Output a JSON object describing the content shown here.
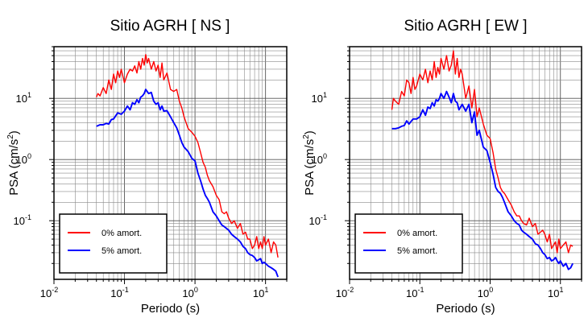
{
  "chart_data": [
    {
      "type": "line",
      "title": "Sitio AGRH [ NS ]",
      "xlabel": "Periodo (s)",
      "ylabel_main": "PSA (cm/s",
      "ylabel_sup": "2",
      "ylabel_end": ")",
      "x_scale": "log",
      "y_scale": "log",
      "xlim": [
        0.01,
        20
      ],
      "ylim": [
        0.011,
        70
      ],
      "x_ticks": [
        {
          "value": 0.01,
          "base": "10",
          "exp": "-2"
        },
        {
          "value": 0.1,
          "base": "10",
          "exp": "-1"
        },
        {
          "value": 1,
          "base": "10",
          "exp": "0"
        },
        {
          "value": 10,
          "base": "10",
          "exp": "1"
        }
      ],
      "y_ticks": [
        {
          "value": 0.1,
          "base": "10",
          "exp": "-1"
        },
        {
          "value": 1,
          "base": "10",
          "exp": "0"
        },
        {
          "value": 10,
          "base": "10",
          "exp": "1"
        }
      ],
      "grid": true,
      "legend_position": "bottom-left",
      "series": [
        {
          "name": "0% amort.",
          "color": "#ff0000",
          "x": [
            0.04,
            0.042,
            0.045,
            0.05,
            0.055,
            0.06,
            0.065,
            0.07,
            0.075,
            0.08,
            0.085,
            0.09,
            0.1,
            0.11,
            0.12,
            0.13,
            0.14,
            0.15,
            0.16,
            0.17,
            0.18,
            0.19,
            0.2,
            0.21,
            0.22,
            0.24,
            0.26,
            0.28,
            0.3,
            0.32,
            0.34,
            0.36,
            0.4,
            0.45,
            0.5,
            0.55,
            0.6,
            0.65,
            0.7,
            0.8,
            0.9,
            1.0,
            1.1,
            1.2,
            1.3,
            1.4,
            1.5,
            1.6,
            1.8,
            2.0,
            2.2,
            2.4,
            2.6,
            2.8,
            3.0,
            3.3,
            3.6,
            4.0,
            4.4,
            4.8,
            5.2,
            5.6,
            6.0,
            6.5,
            7.0,
            7.5,
            8,
            8.5,
            9,
            9.5,
            10,
            11,
            12,
            13,
            14,
            15
          ],
          "y": [
            10.5,
            12,
            11,
            15,
            12,
            20,
            14,
            25,
            18,
            28,
            22,
            30,
            18,
            25,
            30,
            28,
            34,
            26,
            40,
            30,
            45,
            35,
            52,
            38,
            45,
            30,
            40,
            28,
            35,
            22,
            38,
            20,
            26,
            14,
            13,
            14,
            9,
            7,
            5,
            3.2,
            2.8,
            2.4,
            1.9,
            1.3,
            0.9,
            0.75,
            0.55,
            0.45,
            0.36,
            0.26,
            0.22,
            0.14,
            0.13,
            0.14,
            0.11,
            0.09,
            0.1,
            0.075,
            0.09,
            0.06,
            0.065,
            0.05,
            0.05,
            0.035,
            0.04,
            0.055,
            0.035,
            0.045,
            0.035,
            0.055,
            0.04,
            0.05,
            0.03,
            0.045,
            0.04,
            0.025
          ]
        },
        {
          "name": "5% amort.",
          "color": "#0000ff",
          "x": [
            0.04,
            0.045,
            0.05,
            0.055,
            0.06,
            0.065,
            0.07,
            0.08,
            0.09,
            0.1,
            0.11,
            0.12,
            0.13,
            0.14,
            0.15,
            0.16,
            0.17,
            0.18,
            0.19,
            0.2,
            0.22,
            0.24,
            0.26,
            0.28,
            0.3,
            0.32,
            0.34,
            0.36,
            0.4,
            0.45,
            0.5,
            0.55,
            0.6,
            0.65,
            0.7,
            0.8,
            0.9,
            1.0,
            1.1,
            1.2,
            1.3,
            1.4,
            1.5,
            1.6,
            1.8,
            2.0,
            2.2,
            2.4,
            2.6,
            2.8,
            3.0,
            3.3,
            3.6,
            4.0,
            4.4,
            4.8,
            5.2,
            5.6,
            6.0,
            6.5,
            7.0,
            7.5,
            8,
            8.5,
            9,
            9.5,
            10,
            11,
            12,
            13,
            14,
            15
          ],
          "y": [
            3.5,
            3.7,
            3.7,
            3.9,
            3.8,
            4.5,
            4.6,
            5.8,
            5.5,
            6.2,
            7.5,
            6.5,
            8.5,
            8,
            9.5,
            8.5,
            10.5,
            11,
            12,
            14,
            12,
            12.5,
            9,
            8,
            8.5,
            6.5,
            7.5,
            6.2,
            6.3,
            5,
            4,
            3.3,
            2.5,
            1.9,
            1.6,
            1.35,
            1.05,
            0.95,
            0.6,
            0.45,
            0.33,
            0.26,
            0.23,
            0.2,
            0.14,
            0.12,
            0.1,
            0.085,
            0.08,
            0.075,
            0.07,
            0.06,
            0.055,
            0.05,
            0.045,
            0.038,
            0.035,
            0.03,
            0.028,
            0.027,
            0.025,
            0.022,
            0.023,
            0.024,
            0.02,
            0.021,
            0.02,
            0.018,
            0.017,
            0.016,
            0.015,
            0.012
          ]
        }
      ]
    },
    {
      "type": "line",
      "title": "Sitio AGRH [ EW ]",
      "xlabel": "Periodo (s)",
      "ylabel_main": "PSA (cm/s",
      "ylabel_sup": "2",
      "ylabel_end": ")",
      "x_scale": "log",
      "y_scale": "log",
      "xlim": [
        0.01,
        20
      ],
      "ylim": [
        0.011,
        70
      ],
      "x_ticks": [
        {
          "value": 0.01,
          "base": "10",
          "exp": "-2"
        },
        {
          "value": 0.1,
          "base": "10",
          "exp": "-1"
        },
        {
          "value": 1,
          "base": "10",
          "exp": "0"
        },
        {
          "value": 10,
          "base": "10",
          "exp": "1"
        }
      ],
      "y_ticks": [
        {
          "value": 0.1,
          "base": "10",
          "exp": "-1"
        },
        {
          "value": 1,
          "base": "10",
          "exp": "0"
        },
        {
          "value": 10,
          "base": "10",
          "exp": "1"
        }
      ],
      "grid": true,
      "legend_position": "bottom-left",
      "series": [
        {
          "name": "0% amort.",
          "color": "#ff0000",
          "x": [
            0.04,
            0.042,
            0.045,
            0.05,
            0.055,
            0.06,
            0.065,
            0.07,
            0.075,
            0.08,
            0.085,
            0.09,
            0.1,
            0.11,
            0.12,
            0.13,
            0.14,
            0.15,
            0.16,
            0.17,
            0.18,
            0.19,
            0.2,
            0.22,
            0.24,
            0.26,
            0.28,
            0.3,
            0.32,
            0.34,
            0.36,
            0.38,
            0.4,
            0.45,
            0.5,
            0.55,
            0.6,
            0.65,
            0.7,
            0.8,
            0.9,
            1.0,
            1.1,
            1.2,
            1.3,
            1.4,
            1.5,
            1.6,
            1.8,
            2.0,
            2.2,
            2.4,
            2.6,
            2.8,
            3.0,
            3.3,
            3.6,
            4.0,
            4.4,
            4.8,
            5.2,
            5.6,
            6.0,
            6.5,
            7.0,
            7.5,
            8,
            8.5,
            9,
            9.5,
            10,
            11,
            12,
            13,
            14,
            15
          ],
          "y": [
            6.5,
            10,
            9,
            8,
            13,
            11,
            20,
            18,
            12,
            22,
            14,
            16,
            25,
            20,
            30,
            18,
            28,
            20,
            40,
            22,
            32,
            25,
            45,
            30,
            50,
            28,
            35,
            60,
            25,
            45,
            22,
            30,
            25,
            10,
            16,
            7,
            14,
            5,
            7,
            3.8,
            2.5,
            2.2,
            1.3,
            0.7,
            0.5,
            0.35,
            0.3,
            0.28,
            0.22,
            0.18,
            0.14,
            0.12,
            0.12,
            0.1,
            0.09,
            0.085,
            0.11,
            0.08,
            0.09,
            0.06,
            0.065,
            0.07,
            0.06,
            0.045,
            0.06,
            0.035,
            0.04,
            0.045,
            0.03,
            0.05,
            0.035,
            0.04,
            0.045,
            0.03,
            0.04,
            0.038
          ]
        },
        {
          "name": "5% amort.",
          "color": "#0000ff",
          "x": [
            0.04,
            0.045,
            0.05,
            0.055,
            0.06,
            0.065,
            0.07,
            0.08,
            0.09,
            0.1,
            0.11,
            0.12,
            0.13,
            0.14,
            0.15,
            0.16,
            0.17,
            0.18,
            0.19,
            0.2,
            0.22,
            0.24,
            0.26,
            0.28,
            0.3,
            0.32,
            0.34,
            0.36,
            0.4,
            0.45,
            0.5,
            0.55,
            0.6,
            0.65,
            0.7,
            0.8,
            0.9,
            1.0,
            1.1,
            1.2,
            1.3,
            1.4,
            1.5,
            1.6,
            1.8,
            2.0,
            2.2,
            2.4,
            2.6,
            2.8,
            3.0,
            3.3,
            3.6,
            4.0,
            4.4,
            4.8,
            5.2,
            5.6,
            6.0,
            6.5,
            7.0,
            7.5,
            8,
            8.5,
            9,
            9.5,
            10,
            11,
            12,
            13,
            14,
            15
          ],
          "y": [
            3.2,
            3.2,
            3.3,
            3.5,
            3.6,
            4.3,
            3.8,
            4.6,
            4.6,
            5,
            6.5,
            5.3,
            7.2,
            6.8,
            8.5,
            7.5,
            9.5,
            9,
            10,
            12,
            10,
            13,
            10.5,
            8.5,
            12,
            9,
            8.5,
            6.5,
            8,
            6.2,
            8,
            4,
            6,
            2.5,
            3,
            1.6,
            1.4,
            0.9,
            0.58,
            0.35,
            0.3,
            0.28,
            0.24,
            0.2,
            0.14,
            0.12,
            0.1,
            0.09,
            0.085,
            0.07,
            0.065,
            0.06,
            0.055,
            0.05,
            0.042,
            0.04,
            0.035,
            0.03,
            0.028,
            0.024,
            0.025,
            0.022,
            0.023,
            0.025,
            0.022,
            0.02,
            0.022,
            0.018,
            0.02,
            0.016,
            0.017,
            0.02
          ]
        }
      ]
    }
  ]
}
